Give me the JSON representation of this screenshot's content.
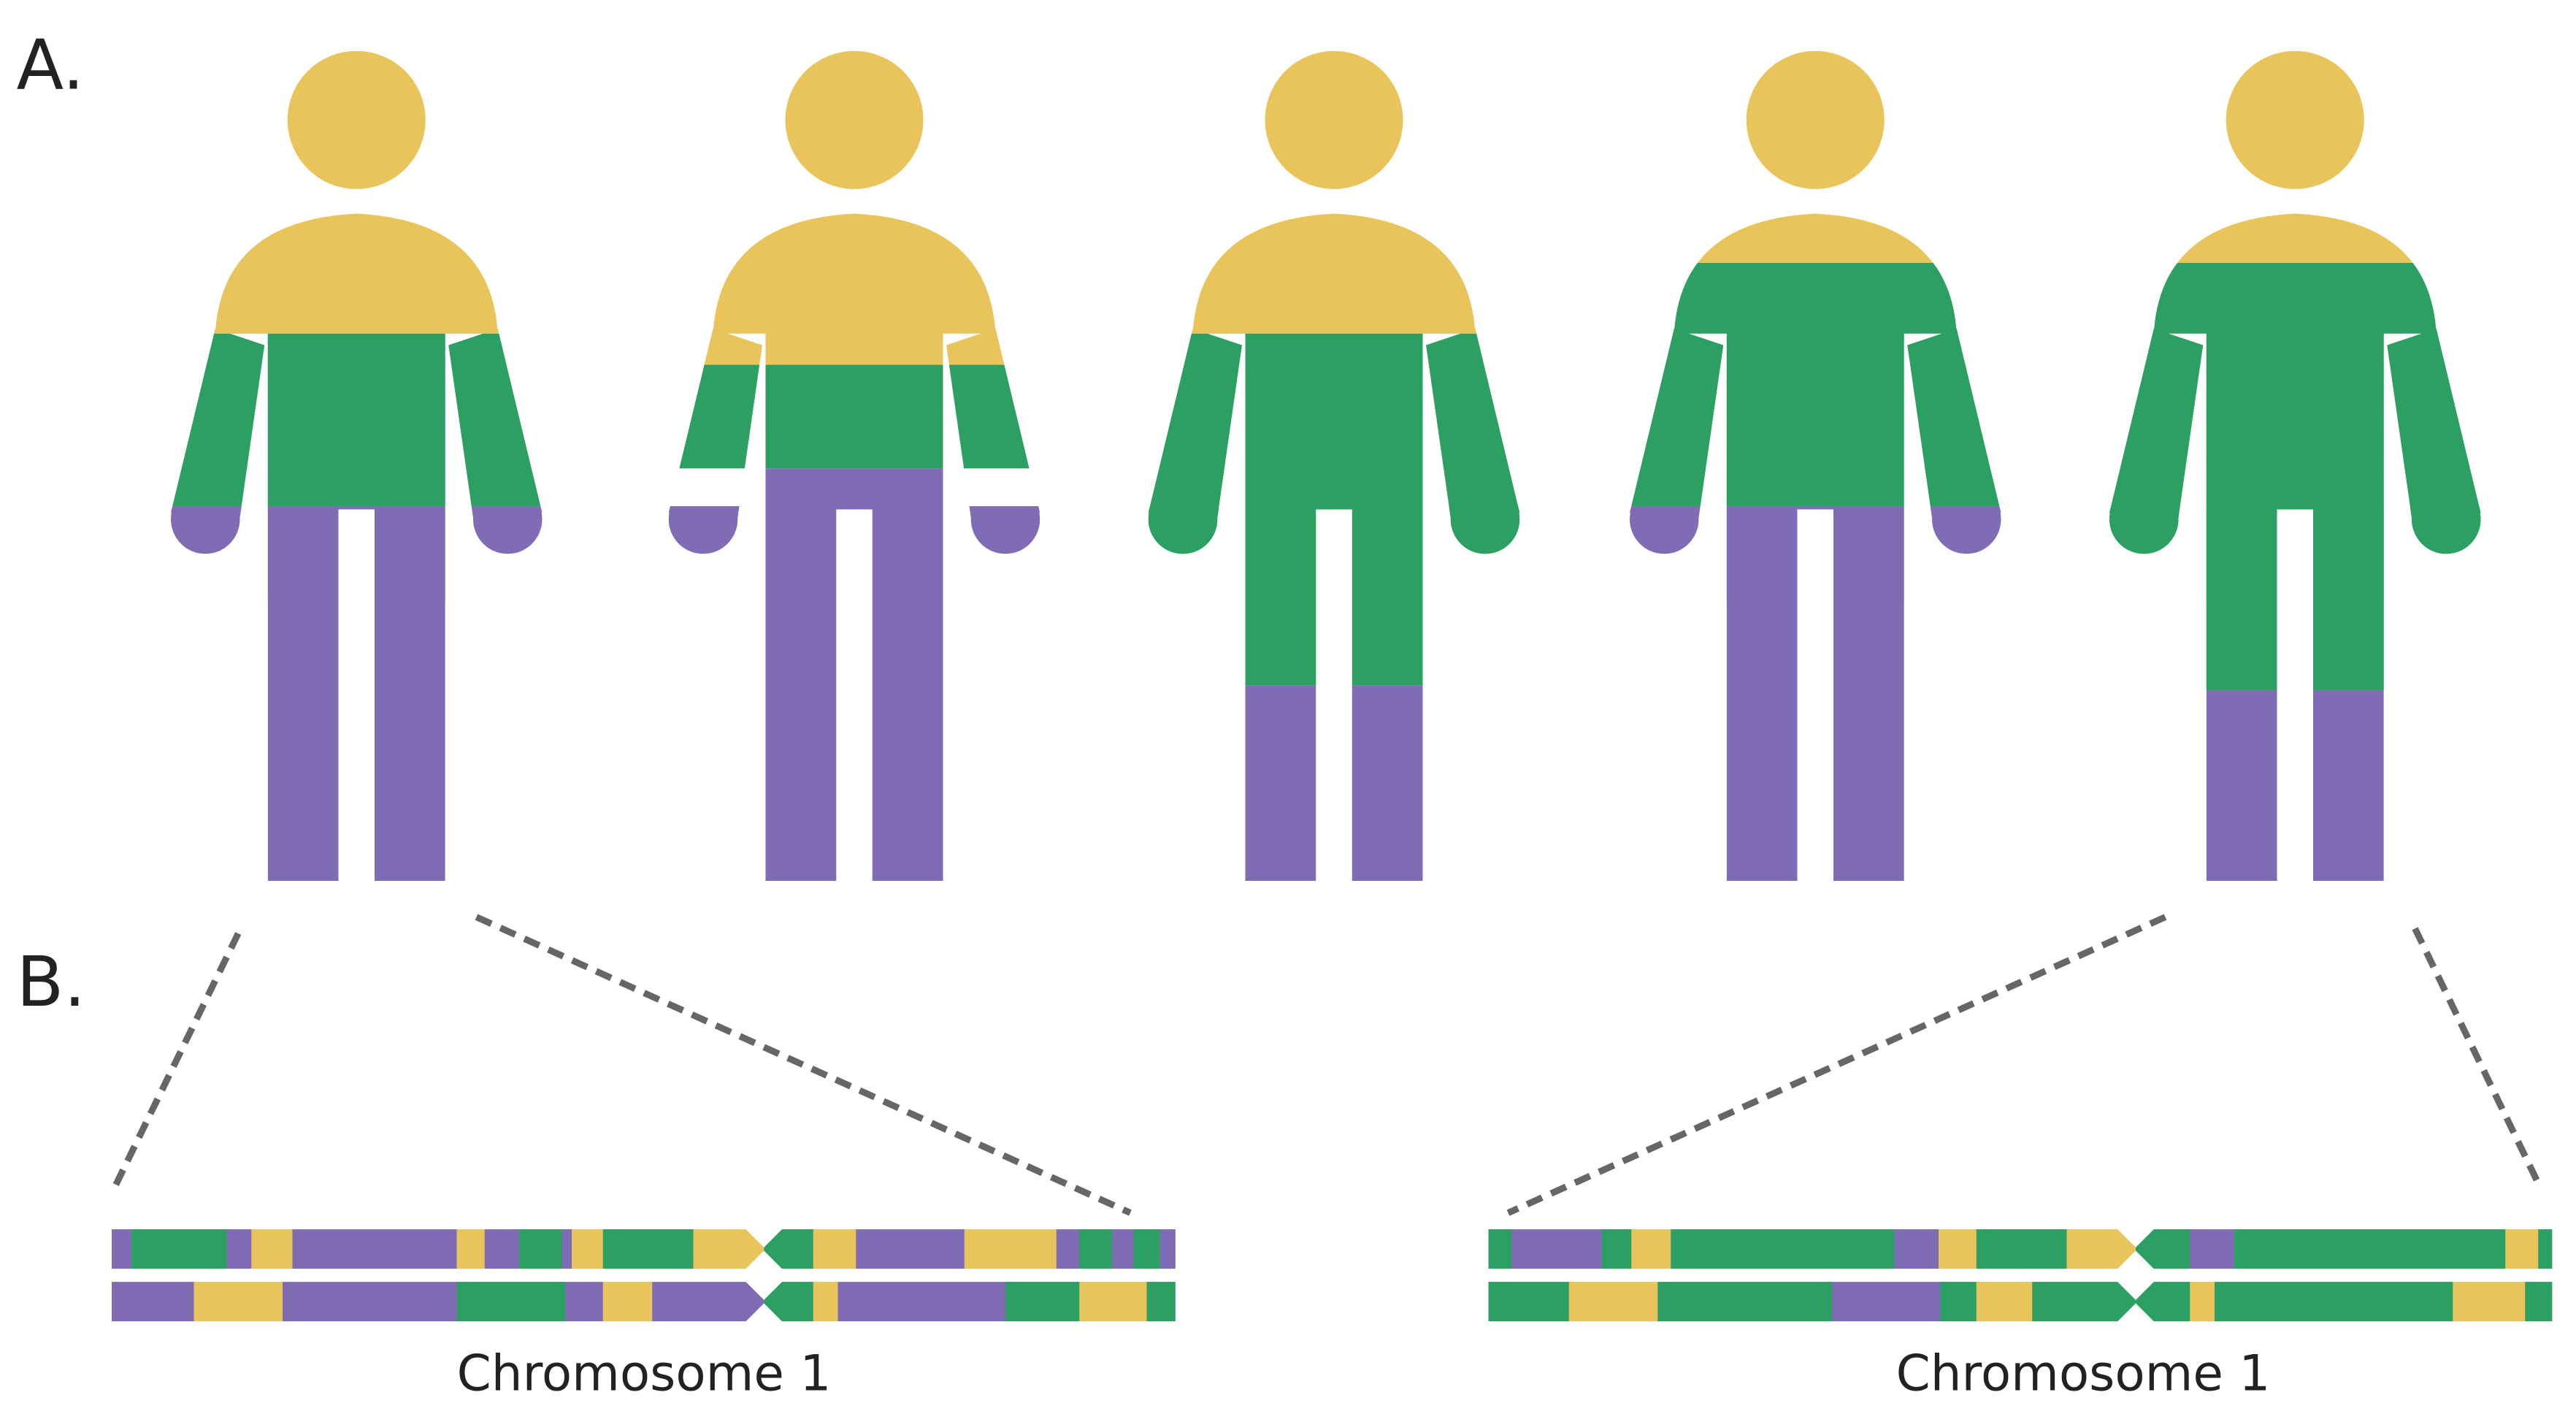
{
  "panels": {
    "a": {
      "label": "A."
    },
    "b": {
      "label": "B."
    }
  },
  "chromosomes": [
    {
      "label": "Chromosome 1"
    },
    {
      "label": "Chromosome 1"
    }
  ]
}
